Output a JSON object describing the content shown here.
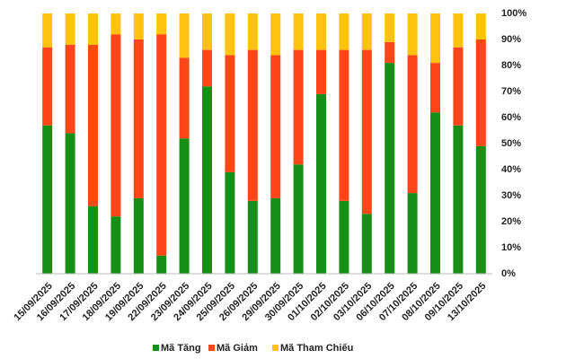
{
  "chart_data": {
    "type": "stacked_bar_100",
    "categories": [
      "15/09/2025",
      "16/09/2025",
      "17/09/2025",
      "18/09/2025",
      "19/09/2025",
      "22/09/2025",
      "23/09/2025",
      "24/09/2025",
      "25/09/2025",
      "26/09/2025",
      "29/09/2025",
      "30/09/2025",
      "01/10/2025",
      "02/10/2025",
      "03/10/2025",
      "06/10/2025",
      "07/10/2025",
      "08/10/2025",
      "09/10/2025",
      "13/10/2025"
    ],
    "series": [
      {
        "name": "Mã Tăng",
        "color": "#178f17",
        "values": [
          57,
          54,
          26,
          22,
          29,
          7,
          52,
          72,
          39,
          28,
          29,
          42,
          69,
          28,
          23,
          81,
          31,
          62,
          57,
          49
        ]
      },
      {
        "name": "Mã Giảm",
        "color": "#ff4619",
        "values": [
          30,
          34,
          62,
          70,
          61,
          85,
          31,
          14,
          45,
          58,
          55,
          44,
          17,
          58,
          63,
          8,
          53,
          19,
          30,
          41
        ]
      },
      {
        "name": "Mã Tham Chiếu",
        "color": "#ffc20e",
        "values": [
          13,
          12,
          12,
          8,
          10,
          8,
          17,
          14,
          16,
          14,
          16,
          14,
          14,
          14,
          14,
          11,
          16,
          19,
          13,
          10
        ]
      }
    ],
    "ylim": [
      0,
      100
    ],
    "yticks": [
      {
        "value": 0,
        "label": "0%"
      },
      {
        "value": 10,
        "label": "10%"
      },
      {
        "value": 20,
        "label": "20%"
      },
      {
        "value": 30,
        "label": "30%"
      },
      {
        "value": 40,
        "label": "40%"
      },
      {
        "value": 50,
        "label": "50%"
      },
      {
        "value": 60,
        "label": "60%"
      },
      {
        "value": 70,
        "label": "70%"
      },
      {
        "value": 80,
        "label": "80%"
      },
      {
        "value": 90,
        "label": "90%"
      },
      {
        "value": 100,
        "label": "100%"
      }
    ],
    "legend_position": "bottom"
  }
}
